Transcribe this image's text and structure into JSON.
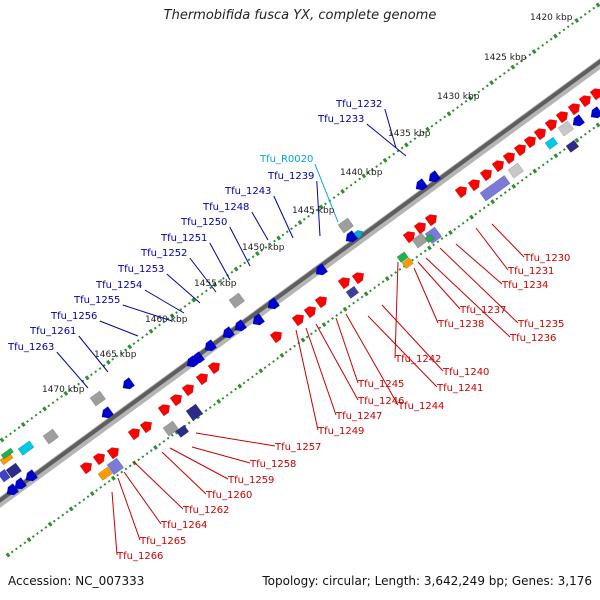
{
  "title": "Thermobifida fusca YX, complete genome",
  "accession": "Accession: NC_007333",
  "topology": "Topology: circular; Length: 3,642,249 bp; Genes: 3,176",
  "colors": {
    "forward_gene": "#ff0000",
    "reverse_gene": "#0000cc",
    "rna_gene": "#00a6d6",
    "forward_label": "#cc0000",
    "reverse_label": "#0000aa",
    "tick_dots": "#2f8f2f",
    "backbone": "#666666"
  },
  "kbp_ticks": [
    "1420 kbp",
    "1425 kbp",
    "1430 kbp",
    "1435 kbp",
    "1440 kbp",
    "1445 kbp",
    "1450 kbp",
    "1455 kbp",
    "1460 kbp",
    "1465 kbp",
    "1470 kbp"
  ],
  "forward_genes": [
    "Tfu_1230",
    "Tfu_1231",
    "Tfu_1234",
    "Tfu_1235",
    "Tfu_1236",
    "Tfu_1237",
    "Tfu_1238",
    "Tfu_1240",
    "Tfu_1241",
    "Tfu_1242",
    "Tfu_1244",
    "Tfu_1245",
    "Tfu_1246",
    "Tfu_1247",
    "Tfu_1249",
    "Tfu_1257",
    "Tfu_1258",
    "Tfu_1259",
    "Tfu_1260",
    "Tfu_1262",
    "Tfu_1264",
    "Tfu_1265",
    "Tfu_1266"
  ],
  "reverse_genes": [
    "Tfu_1232",
    "Tfu_1233",
    "Tfu_R0020",
    "Tfu_1239",
    "Tfu_1243",
    "Tfu_1248",
    "Tfu_1250",
    "Tfu_1251",
    "Tfu_1252",
    "Tfu_1253",
    "Tfu_1254",
    "Tfu_1255",
    "Tfu_1256",
    "Tfu_1261",
    "Tfu_1263"
  ]
}
